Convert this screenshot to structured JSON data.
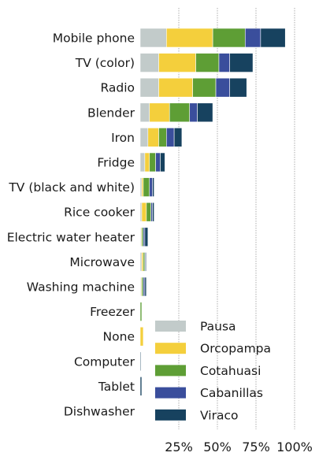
{
  "chart_data": {
    "type": "bar",
    "orientation": "horizontal",
    "stacked": true,
    "categories": [
      "Mobile phone",
      "TV (color)",
      "Radio",
      "Blender",
      "Iron",
      "Fridge",
      "TV (black and white)",
      "Rice cooker",
      "Electric water heater",
      "Microwave",
      "Washing machine",
      "Freezer",
      "None",
      "Computer",
      "Tablet",
      "Dishwasher"
    ],
    "series": [
      {
        "name": "Pausa",
        "color": "#c2cbca",
        "values": [
          17,
          12,
          12,
          6,
          5,
          3,
          1,
          1,
          0.5,
          1,
          0.5,
          0,
          0,
          0,
          0,
          0
        ]
      },
      {
        "name": "Orcopampa",
        "color": "#f4cf3c",
        "values": [
          30,
          24,
          22,
          13,
          7,
          3,
          1,
          3,
          0.5,
          1,
          0.5,
          0,
          2,
          0,
          0,
          0
        ]
      },
      {
        "name": "Cotahuasi",
        "color": "#5e9e35",
        "values": [
          21,
          15,
          15,
          13,
          5,
          4,
          4,
          3,
          1,
          1,
          1,
          1,
          0,
          0,
          0,
          0
        ]
      },
      {
        "name": "Cabanillas",
        "color": "#3a4e9c",
        "values": [
          10,
          7,
          9,
          5,
          5,
          3,
          2,
          1,
          1,
          0.5,
          1,
          0,
          0,
          0,
          0,
          0
        ]
      },
      {
        "name": "Viraco",
        "color": "#17425f",
        "values": [
          16,
          15,
          11,
          10,
          5,
          3,
          1,
          1,
          2,
          0.5,
          1,
          0,
          0,
          0.5,
          1,
          0
        ]
      }
    ],
    "x_ticks": [
      "25%",
      "50%",
      "75%",
      "100%"
    ],
    "xlim": [
      0,
      100
    ],
    "grid": "vertical dotted",
    "legend_position": "lower-right"
  }
}
